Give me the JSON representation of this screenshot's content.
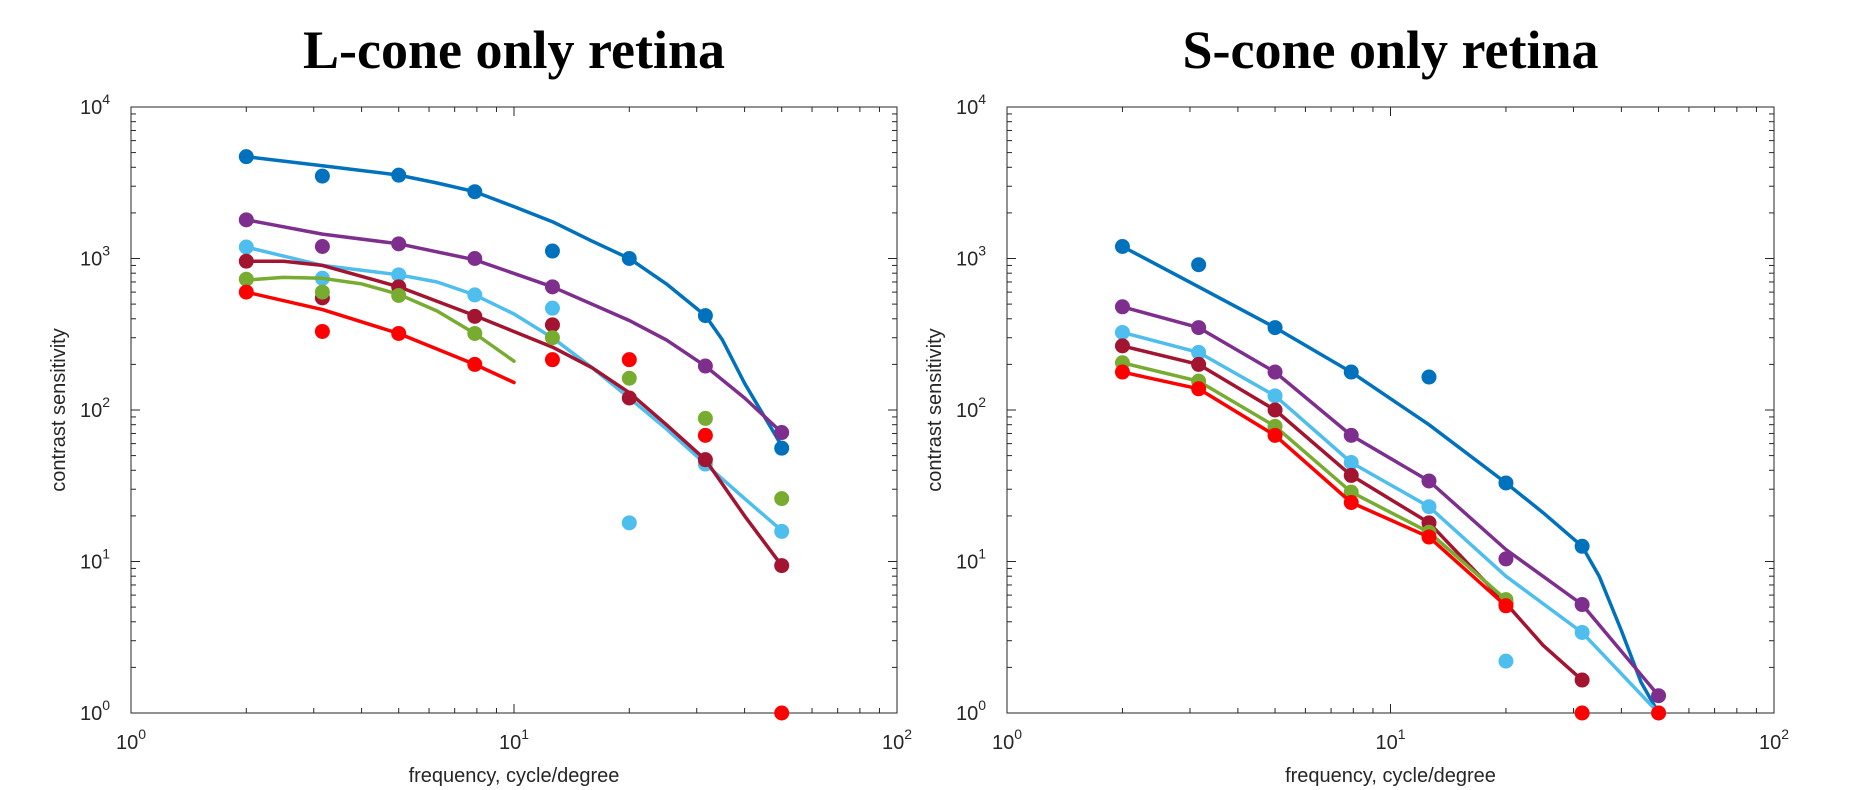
{
  "chart_data": [
    {
      "type": "line",
      "title": "L-cone only retina",
      "xlabel": "frequency, cycle/degree",
      "ylabel": "contrast sensitivity",
      "xscale": "log",
      "yscale": "log",
      "xlim": [
        1,
        100
      ],
      "ylim": [
        1,
        10000
      ],
      "xtick_exponents": [
        0,
        1,
        2
      ],
      "ytick_exponents": [
        0,
        1,
        2,
        3,
        4
      ],
      "grid": false,
      "series": [
        {
          "color": "#0072BD",
          "points": {
            "x": [
              2,
              3.16,
              5,
              7.9,
              12.6,
              20,
              31.6,
              50
            ],
            "y": [
              4700,
              3500,
              3550,
              2760,
              1120,
              1000,
              420,
              56
            ]
          },
          "fit": {
            "x": [
              2,
              3.16,
              5,
              6.3,
              7.9,
              10,
              12.6,
              16,
              20,
              25,
              31.6,
              35,
              40,
              50
            ],
            "y": [
              4700,
              4100,
              3550,
              3150,
              2760,
              2200,
              1750,
              1300,
              1000,
              680,
              420,
              290,
              150,
              58
            ]
          }
        },
        {
          "color": "#7E2F8E",
          "points": {
            "x": [
              2,
              3.16,
              5,
              7.9,
              12.6,
              31.6,
              50
            ],
            "y": [
              1800,
              1200,
              1250,
              1000,
              650,
              195,
              71
            ]
          },
          "fit": {
            "x": [
              2,
              3.16,
              5,
              7.9,
              12.6,
              20,
              25,
              31.6,
              40,
              50
            ],
            "y": [
              1800,
              1450,
              1250,
              980,
              650,
              390,
              290,
              195,
              120,
              71
            ]
          }
        },
        {
          "color": "#4DBEEE",
          "points": {
            "x": [
              2,
              3.16,
              5,
              7.9,
              12.6,
              20,
              31.6,
              50
            ],
            "y": [
              1190,
              740,
              780,
              575,
              470,
              18,
              44,
              15.8
            ]
          },
          "fit": {
            "x": [
              2,
              3.16,
              5,
              6.3,
              7.9,
              10,
              12.6,
              16,
              20,
              25,
              31.6,
              40,
              50
            ],
            "y": [
              1190,
              900,
              780,
              700,
              575,
              430,
              300,
              190,
              120,
              75,
              44,
              26,
              16
            ]
          }
        },
        {
          "color": "#A2142F",
          "points": {
            "x": [
              2,
              3.16,
              5,
              7.9,
              12.6,
              20,
              31.6,
              50
            ],
            "y": [
              960,
              550,
              650,
              415,
              365,
              120,
              47,
              9.4
            ]
          },
          "fit": {
            "x": [
              2,
              2.5,
              3.16,
              5,
              7.9,
              12.6,
              16,
              20,
              25,
              31.6,
              40,
              50
            ],
            "y": [
              960,
              960,
              900,
              650,
              420,
              260,
              190,
              130,
              80,
              47,
              20,
              9.4
            ]
          }
        },
        {
          "color": "#77AC30",
          "points": {
            "x": [
              2,
              3.16,
              5,
              7.9,
              12.6,
              20,
              31.6,
              50
            ],
            "y": [
              730,
              600,
              570,
              320,
              300,
              162,
              88,
              26
            ]
          },
          "fit": {
            "x": [
              2,
              2.5,
              3.16,
              4,
              5,
              6.3,
              7.9,
              10
            ],
            "y": [
              720,
              750,
              740,
              680,
              580,
              450,
              320,
              210
            ]
          }
        },
        {
          "color": "#FF0000",
          "points": {
            "x": [
              2,
              3.16,
              5,
              7.9,
              12.6,
              20,
              31.6,
              50
            ],
            "y": [
              600,
              330,
              320,
              200,
              215,
              215,
              68,
              1
            ]
          },
          "fit": {
            "x": [
              2,
              3.16,
              5,
              7.9,
              10
            ],
            "y": [
              600,
              460,
              320,
              200,
              152
            ]
          }
        }
      ]
    },
    {
      "type": "line",
      "title": "S-cone only retina",
      "xlabel": "frequency, cycle/degree",
      "ylabel": "contrast sensitivity",
      "xscale": "log",
      "yscale": "log",
      "xlim": [
        1,
        100
      ],
      "ylim": [
        1,
        10000
      ],
      "xtick_exponents": [
        0,
        1,
        2
      ],
      "ytick_exponents": [
        0,
        1,
        2,
        3,
        4
      ],
      "grid": false,
      "series": [
        {
          "color": "#0072BD",
          "points": {
            "x": [
              2,
              3.16,
              5,
              7.9,
              12.6,
              20,
              31.6
            ],
            "y": [
              1200,
              910,
              350,
              178,
              165,
              33,
              12.6
            ]
          },
          "fit": {
            "x": [
              2,
              3.16,
              5,
              7.9,
              12.6,
              20,
              25,
              31.6,
              35,
              40,
              45,
              50
            ],
            "y": [
              1200,
              650,
              350,
              178,
              80,
              33,
              21,
              12.6,
              8,
              3.5,
              1.6,
              1
            ]
          }
        },
        {
          "color": "#7E2F8E",
          "points": {
            "x": [
              2,
              3.16,
              5,
              7.9,
              12.6,
              20,
              31.6,
              50
            ],
            "y": [
              480,
              350,
              178,
              68,
              34,
              10.4,
              5.2,
              1.3
            ]
          },
          "fit": {
            "x": [
              2,
              3.16,
              5,
              7.9,
              12.6,
              20,
              31.6,
              50
            ],
            "y": [
              480,
              350,
              178,
              68,
              34,
              12,
              5.2,
              1.3
            ]
          }
        },
        {
          "color": "#4DBEEE",
          "points": {
            "x": [
              2,
              3.16,
              5,
              7.9,
              12.6,
              20,
              31.6,
              50
            ],
            "y": [
              325,
              240,
              124,
              45,
              23,
              2.2,
              3.4,
              1
            ]
          },
          "fit": {
            "x": [
              2,
              3.16,
              5,
              7.9,
              12.6,
              20,
              31.6,
              50
            ],
            "y": [
              325,
              240,
              124,
              45,
              23,
              8,
              3.4,
              1
            ]
          }
        },
        {
          "color": "#A2142F",
          "points": {
            "x": [
              2,
              3.16,
              5,
              7.9,
              12.6,
              20,
              31.6
            ],
            "y": [
              265,
              200,
              100,
              37,
              18,
              5.3,
              1.65
            ]
          },
          "fit": {
            "x": [
              2,
              3.16,
              5,
              7.9,
              12.6,
              20,
              25,
              31.6
            ],
            "y": [
              265,
              200,
              100,
              37,
              18,
              5.3,
              2.8,
              1.65
            ]
          }
        },
        {
          "color": "#77AC30",
          "points": {
            "x": [
              2,
              3.16,
              5,
              7.9,
              12.6,
              20
            ],
            "y": [
              205,
              155,
              78,
              28.7,
              15.6,
              5.6
            ]
          },
          "fit": {
            "x": [
              2,
              3.16,
              5,
              7.9,
              12.6,
              20
            ],
            "y": [
              205,
              155,
              78,
              28.7,
              15.6,
              5.6
            ]
          }
        },
        {
          "color": "#FF0000",
          "points": {
            "x": [
              2,
              3.16,
              5,
              7.9,
              12.6,
              20,
              31.6,
              50
            ],
            "y": [
              178,
              138,
              68,
              24.5,
              14.5,
              5.1,
              1,
              1
            ]
          },
          "fit": {
            "x": [
              2,
              3.16,
              5,
              7.9,
              12.6,
              20
            ],
            "y": [
              178,
              138,
              68,
              24.5,
              14.5,
              5.1
            ]
          }
        }
      ]
    }
  ]
}
